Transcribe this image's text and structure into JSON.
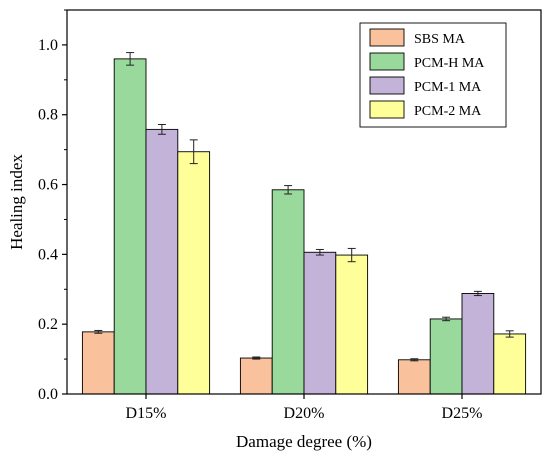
{
  "chart_data": {
    "type": "bar",
    "xlabel": "Damage degree (%)",
    "ylabel": "Healing index",
    "categories": [
      "D15%",
      "D20%",
      "D25%"
    ],
    "ylim": [
      0,
      1.1
    ],
    "yticks": [
      "0.0",
      "0.2",
      "0.4",
      "0.6",
      "0.8",
      "1.0"
    ],
    "series": [
      {
        "name": "SBS MA",
        "color": "#f9c29d",
        "values": [
          0.178,
          0.103,
          0.098
        ],
        "errors": [
          0.004,
          0.003,
          0.003
        ]
      },
      {
        "name": "PCM-H MA",
        "color": "#99d99b",
        "values": [
          0.96,
          0.585,
          0.215
        ],
        "errors": [
          0.018,
          0.012,
          0.005
        ]
      },
      {
        "name": "PCM-1 MA",
        "color": "#c3b3d9",
        "values": [
          0.758,
          0.406,
          0.288
        ],
        "errors": [
          0.014,
          0.008,
          0.006
        ]
      },
      {
        "name": "PCM-2 MA",
        "color": "#ffff99",
        "values": [
          0.694,
          0.398,
          0.172
        ],
        "errors": [
          0.034,
          0.019,
          0.009
        ]
      }
    ],
    "legend_position": "top-right",
    "grid": false
  }
}
